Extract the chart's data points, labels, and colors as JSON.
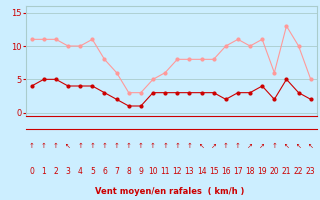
{
  "hours": [
    0,
    1,
    2,
    3,
    4,
    5,
    6,
    7,
    8,
    9,
    10,
    11,
    12,
    13,
    14,
    15,
    16,
    17,
    18,
    19,
    20,
    21,
    22,
    23
  ],
  "avg_wind": [
    4,
    5,
    5,
    4,
    4,
    4,
    3,
    2,
    1,
    1,
    3,
    3,
    3,
    3,
    3,
    3,
    2,
    3,
    3,
    4,
    2,
    5,
    3,
    2
  ],
  "gust_wind": [
    11,
    11,
    11,
    10,
    10,
    11,
    8,
    6,
    3,
    3,
    5,
    6,
    8,
    8,
    8,
    8,
    10,
    11,
    10,
    11,
    6,
    13,
    10,
    5
  ],
  "bg_color": "#cceeff",
  "grid_color": "#aacccc",
  "avg_color": "#cc0000",
  "gust_color": "#ff9999",
  "xlabel": "Vent moyen/en rafales  ( km/h )",
  "xlabel_color": "#cc0000",
  "yticks": [
    0,
    5,
    10,
    15
  ],
  "ylim": [
    -0.5,
    16
  ],
  "xlim": [
    -0.5,
    23.5
  ],
  "arrow_chars": [
    "↑",
    "↑",
    "↑",
    "↖",
    "↑",
    "↑",
    "↑",
    "↑",
    "↑",
    "↑",
    "↑",
    "↑",
    "↑",
    "↑",
    "↖",
    "↗",
    "↑",
    "↑",
    "↗",
    "↗",
    "↑",
    "↖",
    "↖",
    "↖"
  ]
}
